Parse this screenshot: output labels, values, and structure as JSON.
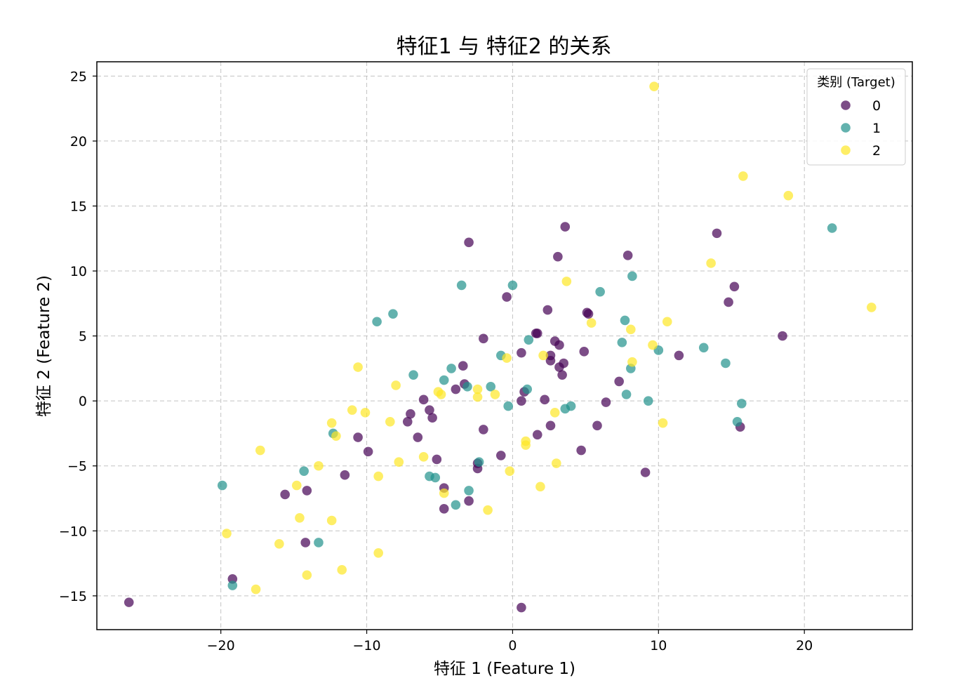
{
  "chart_data": {
    "type": "scatter",
    "title": "特征1 与 特征2 的关系",
    "xlabel": "特征 1 (Feature 1)",
    "ylabel": "特征 2 (Feature 2)",
    "xlim": [
      -28.5,
      27.4
    ],
    "ylim": [
      -17.6,
      26.1
    ],
    "xticks": [
      -20,
      -10,
      0,
      10,
      20
    ],
    "yticks": [
      -15,
      -10,
      -5,
      0,
      5,
      10,
      15,
      20,
      25
    ],
    "xtick_labels": [
      "−20",
      "−10",
      "0",
      "10",
      "20"
    ],
    "ytick_labels": [
      "−15",
      "−10",
      "−5",
      "0",
      "5",
      "10",
      "15",
      "20",
      "25"
    ],
    "grid": true,
    "legend": {
      "title": "类别 (Target)",
      "placement": "top-right"
    },
    "marker_alpha": 0.7,
    "series": [
      {
        "name": "0",
        "color": "#440154",
        "points": [
          [
            -26.3,
            -15.5
          ],
          [
            -19.2,
            -13.7
          ],
          [
            -15.6,
            -7.2
          ],
          [
            -14.2,
            -10.9
          ],
          [
            -14.1,
            -6.9
          ],
          [
            -11.5,
            -5.7
          ],
          [
            -10.6,
            -2.8
          ],
          [
            -9.9,
            -3.9
          ],
          [
            -7.2,
            -1.6
          ],
          [
            -7.0,
            -1.0
          ],
          [
            -6.5,
            -2.8
          ],
          [
            -6.1,
            0.1
          ],
          [
            -5.7,
            -0.7
          ],
          [
            -5.5,
            -1.3
          ],
          [
            -5.2,
            -4.5
          ],
          [
            -4.7,
            -6.7
          ],
          [
            -4.7,
            -8.3
          ],
          [
            -3.9,
            0.9
          ],
          [
            -3.4,
            2.7
          ],
          [
            -3.3,
            1.3
          ],
          [
            -3.0,
            -7.7
          ],
          [
            -3.0,
            12.2
          ],
          [
            -2.4,
            -4.8
          ],
          [
            -2.4,
            -5.2
          ],
          [
            -2.0,
            4.8
          ],
          [
            -2.0,
            -2.2
          ],
          [
            -0.8,
            -4.2
          ],
          [
            -0.4,
            8.0
          ],
          [
            0.6,
            3.7
          ],
          [
            0.6,
            0.0
          ],
          [
            0.6,
            -15.9
          ],
          [
            0.8,
            0.7
          ],
          [
            1.6,
            5.2
          ],
          [
            1.7,
            5.2
          ],
          [
            1.7,
            -2.6
          ],
          [
            2.2,
            0.1
          ],
          [
            2.4,
            7.0
          ],
          [
            2.6,
            3.5
          ],
          [
            2.6,
            3.1
          ],
          [
            2.6,
            -1.9
          ],
          [
            2.9,
            4.6
          ],
          [
            3.1,
            11.1
          ],
          [
            3.2,
            4.3
          ],
          [
            3.2,
            2.6
          ],
          [
            3.4,
            2.0
          ],
          [
            3.5,
            2.9
          ],
          [
            3.6,
            13.4
          ],
          [
            4.7,
            -3.8
          ],
          [
            4.9,
            3.8
          ],
          [
            5.1,
            6.8
          ],
          [
            5.2,
            6.7
          ],
          [
            5.8,
            -1.9
          ],
          [
            6.4,
            -0.1
          ],
          [
            7.3,
            1.5
          ],
          [
            7.9,
            11.2
          ],
          [
            9.1,
            -5.5
          ],
          [
            11.4,
            3.5
          ],
          [
            14.0,
            12.9
          ],
          [
            14.8,
            7.6
          ],
          [
            15.2,
            8.8
          ],
          [
            15.6,
            -2.0
          ],
          [
            18.5,
            5.0
          ]
        ]
      },
      {
        "name": "1",
        "color": "#21918c",
        "points": [
          [
            -19.9,
            -6.5
          ],
          [
            -19.2,
            -14.2
          ],
          [
            -14.3,
            -5.4
          ],
          [
            -13.3,
            -10.9
          ],
          [
            -12.3,
            -2.5
          ],
          [
            -9.3,
            6.1
          ],
          [
            -8.2,
            6.7
          ],
          [
            -6.8,
            2.0
          ],
          [
            -5.7,
            -5.8
          ],
          [
            -5.3,
            -5.9
          ],
          [
            -4.7,
            1.6
          ],
          [
            -4.2,
            2.5
          ],
          [
            -3.9,
            -8.0
          ],
          [
            -3.5,
            8.9
          ],
          [
            -3.1,
            1.1
          ],
          [
            -3.0,
            -6.9
          ],
          [
            -2.3,
            -4.7
          ],
          [
            -1.5,
            1.1
          ],
          [
            -0.8,
            3.5
          ],
          [
            -0.3,
            -0.4
          ],
          [
            0.0,
            8.9
          ],
          [
            1.0,
            0.9
          ],
          [
            1.1,
            4.7
          ],
          [
            3.6,
            -0.6
          ],
          [
            4.0,
            -0.4
          ],
          [
            6.0,
            8.4
          ],
          [
            7.5,
            4.5
          ],
          [
            7.7,
            6.2
          ],
          [
            7.8,
            0.5
          ],
          [
            8.1,
            2.5
          ],
          [
            8.2,
            9.6
          ],
          [
            9.3,
            0.0
          ],
          [
            10.0,
            3.9
          ],
          [
            13.1,
            4.1
          ],
          [
            14.6,
            2.9
          ],
          [
            15.4,
            -1.6
          ],
          [
            15.7,
            -0.2
          ],
          [
            21.9,
            13.3
          ]
        ]
      },
      {
        "name": "2",
        "color": "#fde725",
        "points": [
          [
            -19.6,
            -10.2
          ],
          [
            -17.6,
            -14.5
          ],
          [
            -17.3,
            -3.8
          ],
          [
            -16.0,
            -11.0
          ],
          [
            -14.8,
            -6.5
          ],
          [
            -14.6,
            -9.0
          ],
          [
            -14.1,
            -13.4
          ],
          [
            -13.3,
            -5.0
          ],
          [
            -12.4,
            -1.7
          ],
          [
            -12.4,
            -9.2
          ],
          [
            -12.1,
            -2.7
          ],
          [
            -11.7,
            -13.0
          ],
          [
            -11.0,
            -0.7
          ],
          [
            -10.6,
            2.6
          ],
          [
            -10.1,
            -0.9
          ],
          [
            -9.2,
            -5.8
          ],
          [
            -9.2,
            -11.7
          ],
          [
            -8.4,
            -1.6
          ],
          [
            -8.0,
            1.2
          ],
          [
            -7.8,
            -4.7
          ],
          [
            -6.1,
            -4.3
          ],
          [
            -5.1,
            0.7
          ],
          [
            -4.9,
            0.5
          ],
          [
            -4.7,
            -7.1
          ],
          [
            -2.4,
            0.9
          ],
          [
            -2.4,
            0.3
          ],
          [
            -1.7,
            -8.4
          ],
          [
            -1.2,
            0.5
          ],
          [
            -0.4,
            3.3
          ],
          [
            -0.2,
            -5.4
          ],
          [
            0.9,
            -3.1
          ],
          [
            0.9,
            -3.4
          ],
          [
            1.9,
            -6.6
          ],
          [
            2.1,
            3.5
          ],
          [
            2.9,
            -0.9
          ],
          [
            3.0,
            -4.8
          ],
          [
            3.7,
            9.2
          ],
          [
            5.4,
            6.0
          ],
          [
            8.1,
            5.5
          ],
          [
            8.2,
            3.0
          ],
          [
            9.6,
            4.3
          ],
          [
            9.7,
            24.2
          ],
          [
            10.3,
            -1.7
          ],
          [
            10.6,
            6.1
          ],
          [
            13.6,
            10.6
          ],
          [
            15.8,
            17.3
          ],
          [
            18.9,
            15.8
          ],
          [
            24.6,
            7.2
          ]
        ]
      }
    ]
  }
}
